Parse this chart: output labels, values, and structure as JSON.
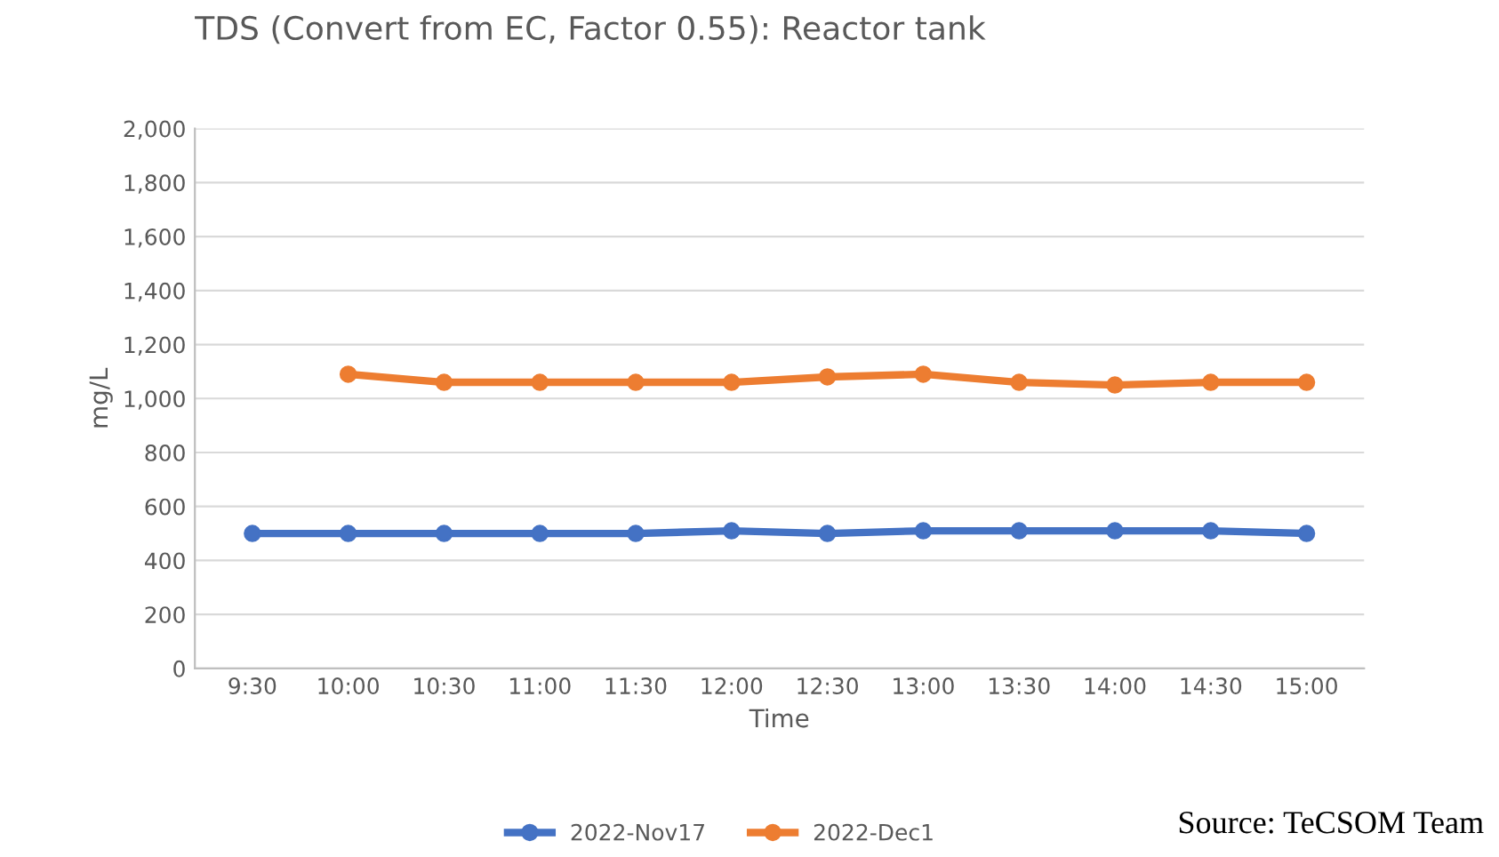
{
  "chart_data": {
    "type": "line",
    "title": "TDS (Convert from EC, Factor 0.55): Reactor tank",
    "xlabel": "Time",
    "ylabel": "mg/L",
    "categories": [
      "9:30",
      "10:00",
      "10:30",
      "11:00",
      "11:30",
      "12:00",
      "12:30",
      "13:00",
      "13:30",
      "14:00",
      "14:30",
      "15:00"
    ],
    "series": [
      {
        "name": "2022-Nov17",
        "color": "#4472c4",
        "values": [
          500,
          500,
          500,
          500,
          500,
          510,
          500,
          510,
          510,
          510,
          510,
          500
        ]
      },
      {
        "name": "2022-Dec1",
        "color": "#ed7d31",
        "values": [
          null,
          1090,
          1060,
          1060,
          1060,
          1060,
          1080,
          1090,
          1060,
          1050,
          1060,
          1060
        ]
      }
    ],
    "ylim": [
      0,
      2000
    ],
    "yticks": [
      0,
      200,
      400,
      600,
      800,
      {
        "value": 1000,
        "label": "1,000"
      },
      {
        "value": 1200,
        "label": "1,200"
      },
      {
        "value": 1400,
        "label": "1,400"
      },
      {
        "value": 1600,
        "label": "1,600"
      },
      {
        "value": 1800,
        "label": "1,800"
      },
      {
        "value": 2000,
        "label": "2,000"
      }
    ],
    "grid": "y",
    "legend": "bottom",
    "marker": "circle",
    "line_style": "solid",
    "annotations": [
      "Source: TeCSOM Team"
    ]
  }
}
